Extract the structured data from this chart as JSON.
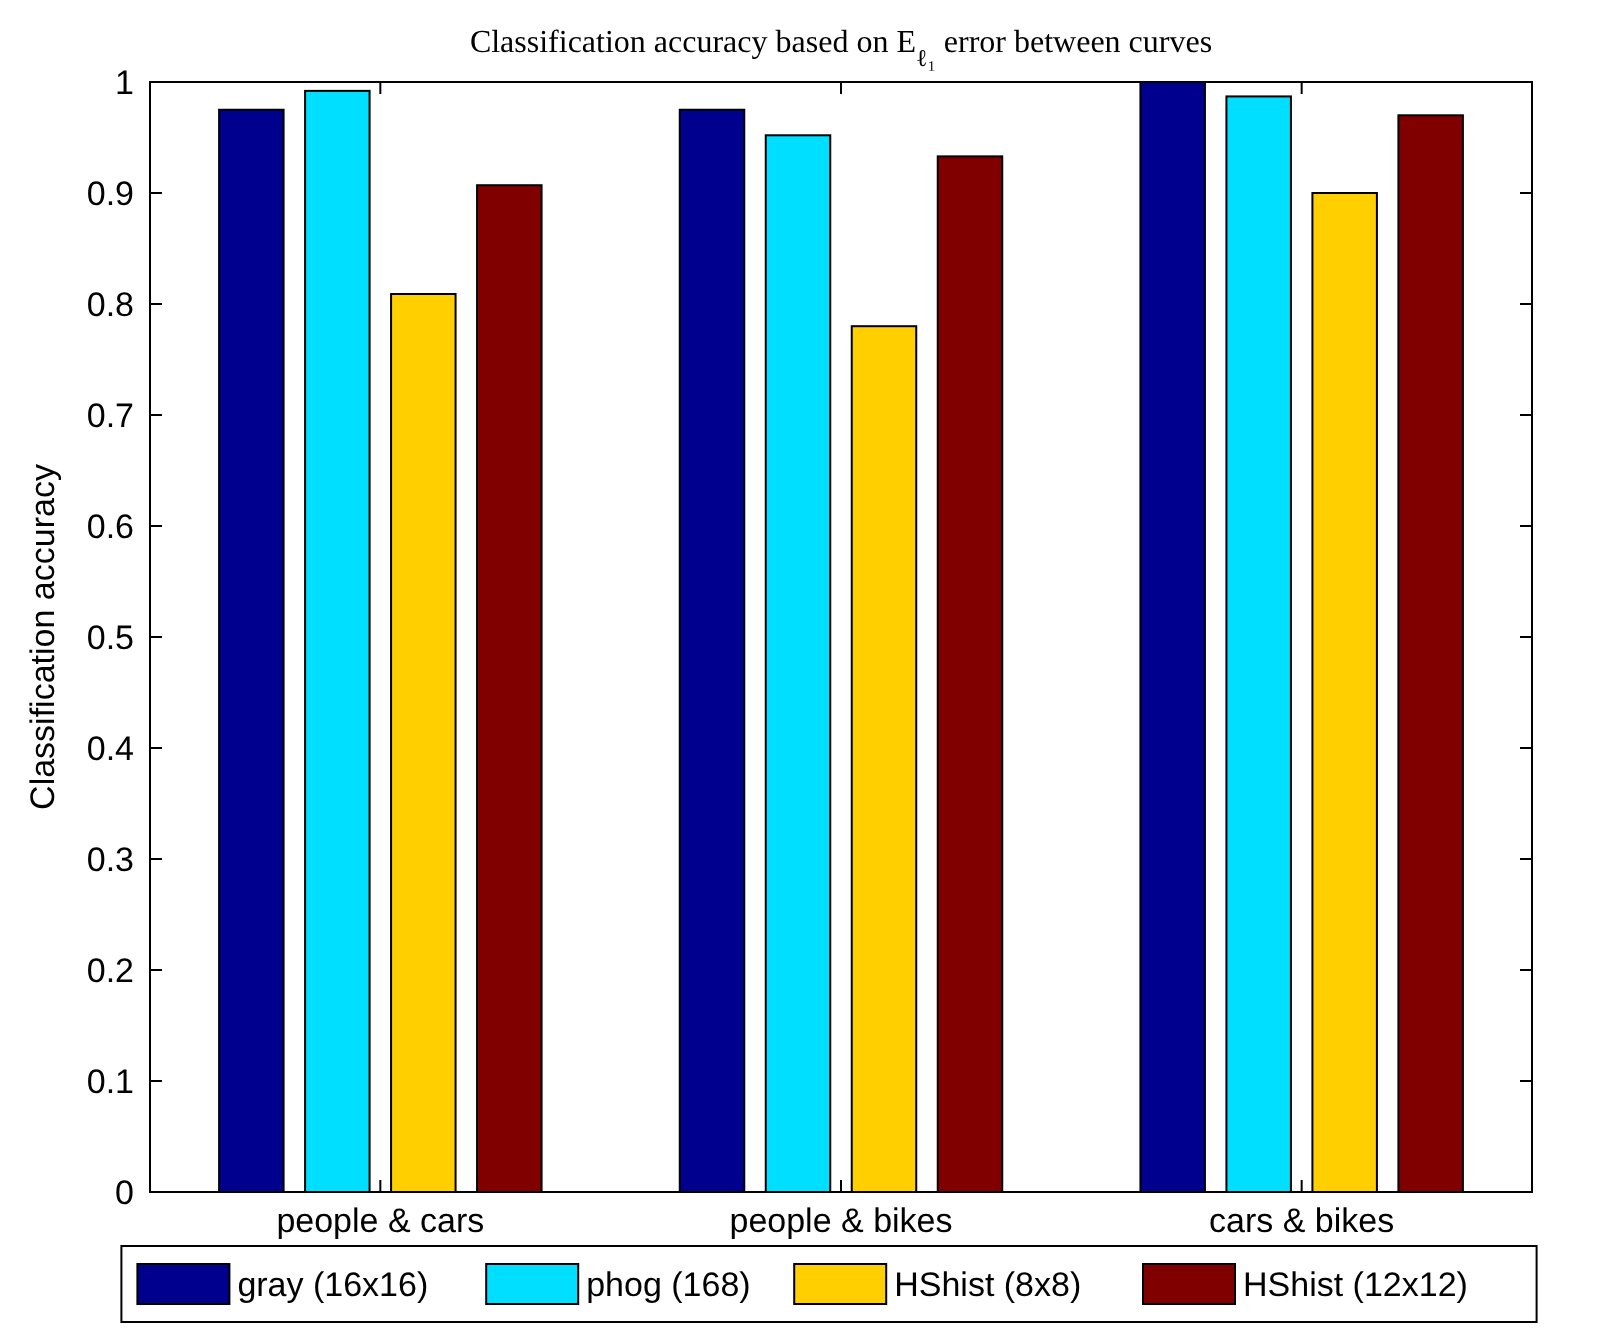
{
  "chart_data": {
    "type": "bar",
    "title": "Classification accuracy based on E$_{ℓ₁}$ error between curves",
    "ylabel": "Classification accuracy",
    "categories": [
      "people & cars",
      "people & bikes",
      "cars & bikes"
    ],
    "series": [
      {
        "name": "gray (16x16)",
        "color": "#00008f",
        "values": [
          0.975,
          0.975,
          1.0
        ]
      },
      {
        "name": "phog (168)",
        "color": "#00dfff",
        "values": [
          0.992,
          0.952,
          0.987
        ]
      },
      {
        "name": "HShist (8x8)",
        "color": "#ffcf00",
        "values": [
          0.809,
          0.78,
          0.9
        ]
      },
      {
        "name": "HShist (12x12)",
        "color": "#800000",
        "values": [
          0.907,
          0.933,
          0.97
        ]
      }
    ],
    "ylim": [
      0,
      1
    ],
    "yticks": [
      0,
      0.1,
      0.2,
      0.3,
      0.4,
      0.5,
      0.6,
      0.7,
      0.8,
      0.9,
      1
    ],
    "grid": false,
    "legend": "bottom"
  }
}
